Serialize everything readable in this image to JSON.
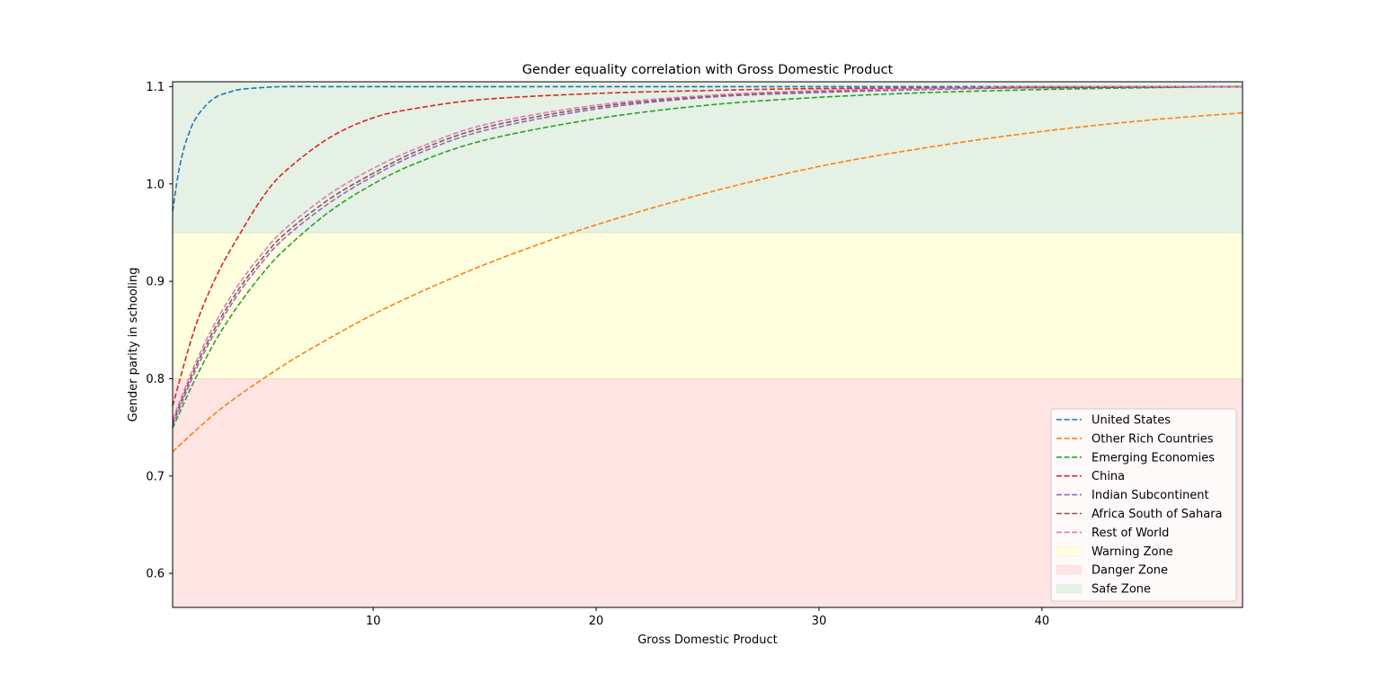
{
  "chart_data": {
    "type": "line",
    "title": "Gender equality correlation with Gross Domestic Product",
    "xlabel": "Gross Domestic Product",
    "ylabel": "Gender parity in schooling",
    "xlim": [
      1,
      49
    ],
    "ylim": [
      0.565,
      1.105
    ],
    "xticks": [
      10,
      20,
      30,
      40
    ],
    "yticks": [
      0.6,
      0.7,
      0.8,
      0.9,
      1.0,
      1.1
    ],
    "ytick_labels": [
      "0.6",
      "0.7",
      "0.8",
      "0.9",
      "1.0",
      "1.1"
    ],
    "grid": false,
    "legend_position": "lower right",
    "zones": [
      {
        "name": "Warning Zone",
        "y0": 0.8,
        "y1": 0.95,
        "color": "#ffffe0"
      },
      {
        "name": "Danger Zone",
        "y0": 0.565,
        "y1": 0.8,
        "color": "#ffe4e4"
      },
      {
        "name": "Safe Zone",
        "y0": 0.95,
        "y1": 1.105,
        "color": "#e5f1e5"
      }
    ],
    "series": [
      {
        "name": "United States",
        "color": "#1f77b4",
        "x": [
          1,
          1.25,
          1.5,
          1.75,
          2,
          2.5,
          3,
          3.5,
          4,
          5,
          6,
          8,
          10,
          15,
          20,
          30,
          40,
          49
        ],
        "y": [
          0.972,
          1.01,
          1.036,
          1.053,
          1.066,
          1.081,
          1.09,
          1.094,
          1.097,
          1.099,
          1.1,
          1.1,
          1.1,
          1.1,
          1.1,
          1.1,
          1.1,
          1.1
        ]
      },
      {
        "name": "Other Rich Countries",
        "color": "#ff7f0e",
        "x": [
          1,
          3,
          5,
          7,
          10,
          13,
          16,
          20,
          25,
          30,
          35,
          40,
          45,
          49
        ],
        "y": [
          0.725,
          0.766,
          0.799,
          0.828,
          0.866,
          0.898,
          0.926,
          0.958,
          0.991,
          1.018,
          1.038,
          1.054,
          1.066,
          1.073
        ]
      },
      {
        "name": "Emerging Economies",
        "color": "#2ca02c",
        "x": [
          1,
          2,
          3,
          4,
          5,
          6,
          8,
          10,
          12,
          15,
          20,
          25,
          30,
          35,
          40,
          45,
          49
        ],
        "y": [
          0.749,
          0.799,
          0.842,
          0.877,
          0.907,
          0.932,
          0.971,
          1.0,
          1.022,
          1.045,
          1.067,
          1.081,
          1.089,
          1.094,
          1.097,
          1.099,
          1.1
        ]
      },
      {
        "name": "China",
        "color": "#d62728",
        "x": [
          1,
          2,
          3,
          4,
          5,
          6,
          8,
          10,
          12,
          15,
          20,
          25,
          30,
          40,
          49
        ],
        "y": [
          0.772,
          0.852,
          0.907,
          0.948,
          0.985,
          1.012,
          1.047,
          1.068,
          1.078,
          1.087,
          1.093,
          1.096,
          1.098,
          1.099,
          1.1
        ]
      },
      {
        "name": "Indian Subcontinent",
        "color": "#9467bd",
        "x": [
          1,
          2,
          3,
          4,
          5,
          6,
          8,
          10,
          12,
          15,
          20,
          25,
          30,
          35,
          40,
          49
        ],
        "y": [
          0.752,
          0.807,
          0.852,
          0.889,
          0.919,
          0.944,
          0.98,
          1.008,
          1.031,
          1.055,
          1.077,
          1.089,
          1.094,
          1.097,
          1.099,
          1.1
        ]
      },
      {
        "name": "Africa South of Sahara",
        "color": "#8c564b",
        "x": [
          1,
          2,
          3,
          4,
          5,
          6,
          8,
          10,
          12,
          15,
          20,
          25,
          30,
          35,
          40,
          49
        ],
        "y": [
          0.755,
          0.811,
          0.856,
          0.893,
          0.923,
          0.948,
          0.984,
          1.011,
          1.034,
          1.058,
          1.079,
          1.09,
          1.095,
          1.098,
          1.099,
          1.1
        ]
      },
      {
        "name": "Rest of World",
        "color": "#e377c2",
        "x": [
          1,
          2,
          3,
          4,
          5,
          6,
          8,
          10,
          12,
          15,
          20,
          25,
          30,
          35,
          40,
          49
        ],
        "y": [
          0.758,
          0.815,
          0.861,
          0.898,
          0.928,
          0.953,
          0.989,
          1.016,
          1.037,
          1.061,
          1.081,
          1.091,
          1.096,
          1.098,
          1.1,
          1.1
        ]
      }
    ]
  }
}
